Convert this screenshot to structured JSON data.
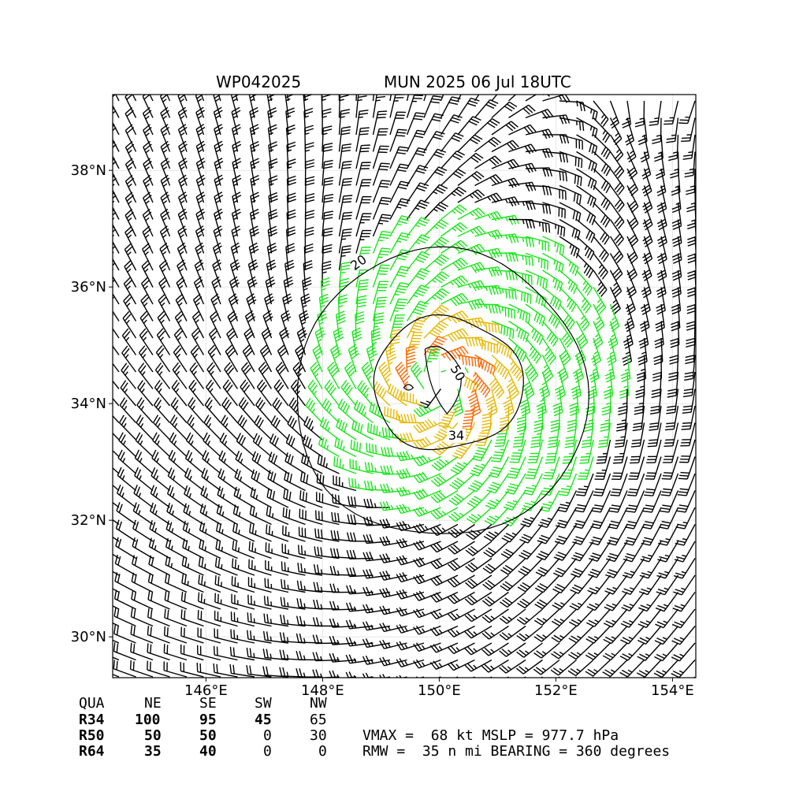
{
  "header": {
    "storm_id": "WP042025",
    "title": "MUN 2025 06 Jul 18UTC"
  },
  "chart_data": {
    "type": "wind-barb-map",
    "x_ticks": [
      "146°E",
      "148°E",
      "150°E",
      "152°E",
      "154°E"
    ],
    "x_tick_values": [
      146,
      148,
      150,
      152,
      154
    ],
    "y_ticks": [
      "30°N",
      "32°N",
      "34°N",
      "36°N",
      "38°N"
    ],
    "y_tick_values": [
      30,
      32,
      34,
      36,
      38
    ],
    "xlim": [
      144.4,
      154.4
    ],
    "ylim": [
      29.3,
      39.3
    ],
    "grid": true,
    "center": {
      "lon": 150.0,
      "lat": 34.3
    },
    "contours": [
      {
        "label": "20",
        "value": 20
      },
      {
        "label": "34",
        "value": 34
      },
      {
        "label": "50",
        "value": 50
      }
    ],
    "barb_colors": {
      "below_34": "#000000",
      "34_to_50": "#19e619",
      "50_to_64": "#e6b800",
      "above_64": "#ff6600"
    }
  },
  "radii_table": {
    "headers": [
      "QUA",
      "NE",
      "SE",
      "SW",
      "NW"
    ],
    "rows": [
      {
        "label": "R34",
        "values": [
          "100",
          "95",
          "45",
          "65"
        ]
      },
      {
        "label": "R50",
        "values": [
          "50",
          "50",
          "0",
          "30"
        ]
      },
      {
        "label": "R64",
        "values": [
          "35",
          "40",
          "0",
          "0"
        ]
      }
    ]
  },
  "stats": {
    "line1": "VMAX =  68 kt MSLP = 977.7 hPa",
    "line2": "RMW =  35 n mi BEARING = 360 degrees"
  }
}
